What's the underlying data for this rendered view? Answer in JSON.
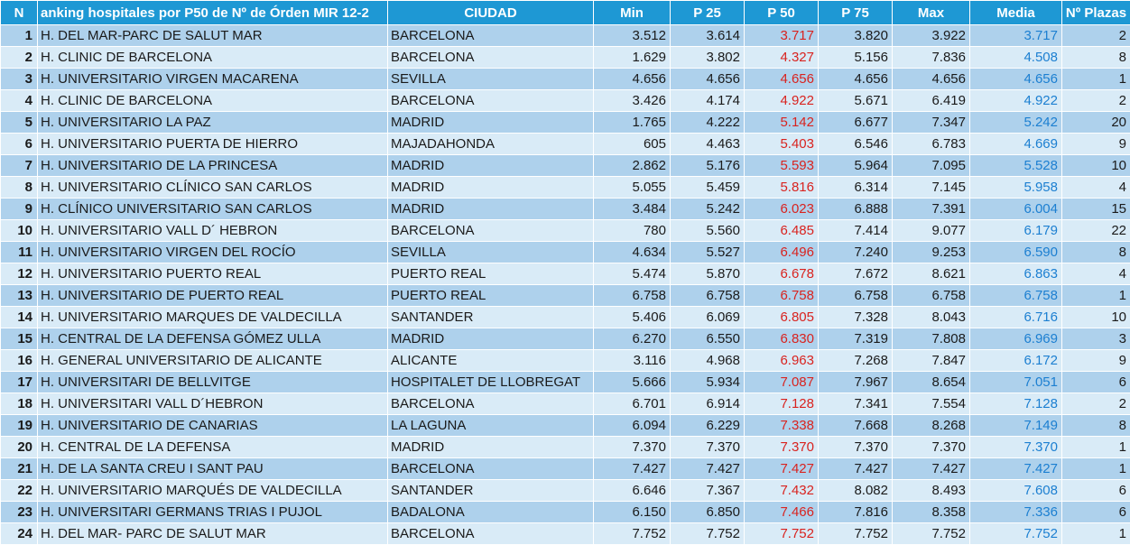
{
  "header": {
    "n": "N",
    "title": "anking hospitales por P50 de Nº de Órden MIR 12-2",
    "city": "CIUDAD",
    "min": "Min",
    "p25": "P 25",
    "p50": "P 50",
    "p75": "P 75",
    "max": "Max",
    "media": "Media",
    "plazas": "Nº Plazas"
  },
  "colors": {
    "header_bg": "#1e98d4",
    "row_dark": "#aed1ec",
    "row_light": "#d9ebf7",
    "p50_text": "#d9231f",
    "media_text": "#1c7fd1"
  },
  "rows": [
    {
      "n": "1",
      "name": "H. DEL MAR-PARC DE SALUT MAR",
      "city": "BARCELONA",
      "min": "3.512",
      "p25": "3.614",
      "p50": "3.717",
      "p75": "3.820",
      "max": "3.922",
      "media": "3.717",
      "plazas": "2"
    },
    {
      "n": "2",
      "name": "H. CLINIC DE BARCELONA",
      "city": "BARCELONA",
      "min": "1.629",
      "p25": "3.802",
      "p50": "4.327",
      "p75": "5.156",
      "max": "7.836",
      "media": "4.508",
      "plazas": "8"
    },
    {
      "n": "3",
      "name": "H. UNIVERSITARIO VIRGEN MACARENA",
      "city": "SEVILLA",
      "min": "4.656",
      "p25": "4.656",
      "p50": "4.656",
      "p75": "4.656",
      "max": "4.656",
      "media": "4.656",
      "plazas": "1"
    },
    {
      "n": "4",
      "name": "H. CLINIC  DE BARCELONA",
      "city": "BARCELONA",
      "min": "3.426",
      "p25": "4.174",
      "p50": "4.922",
      "p75": "5.671",
      "max": "6.419",
      "media": "4.922",
      "plazas": "2"
    },
    {
      "n": "5",
      "name": "H. UNIVERSITARIO LA PAZ",
      "city": "MADRID",
      "min": "1.765",
      "p25": "4.222",
      "p50": "5.142",
      "p75": "6.677",
      "max": "7.347",
      "media": "5.242",
      "plazas": "20"
    },
    {
      "n": "6",
      "name": "H. UNIVERSITARIO PUERTA DE HIERRO",
      "city": "MAJADAHONDA",
      "min": "605",
      "p25": "4.463",
      "p50": "5.403",
      "p75": "6.546",
      "max": "6.783",
      "media": "4.669",
      "plazas": "9"
    },
    {
      "n": "7",
      "name": "H. UNIVERSITARIO DE LA PRINCESA",
      "city": "MADRID",
      "min": "2.862",
      "p25": "5.176",
      "p50": "5.593",
      "p75": "5.964",
      "max": "7.095",
      "media": "5.528",
      "plazas": "10"
    },
    {
      "n": "8",
      "name": "H. UNIVERSITARIO CLÍNICO SAN CARLOS",
      "city": "MADRID",
      "min": "5.055",
      "p25": "5.459",
      "p50": "5.816",
      "p75": "6.314",
      "max": "7.145",
      "media": "5.958",
      "plazas": "4"
    },
    {
      "n": "9",
      "name": "H. CLÍNICO UNIVERSITARIO SAN CARLOS",
      "city": "MADRID",
      "min": "3.484",
      "p25": "5.242",
      "p50": "6.023",
      "p75": "6.888",
      "max": "7.391",
      "media": "6.004",
      "plazas": "15"
    },
    {
      "n": "10",
      "name": "H. UNIVERSITARIO VALL D´ HEBRON",
      "city": "BARCELONA",
      "min": "780",
      "p25": "5.560",
      "p50": "6.485",
      "p75": "7.414",
      "max": "9.077",
      "media": "6.179",
      "plazas": "22"
    },
    {
      "n": "11",
      "name": "H. UNIVERSITARIO VIRGEN DEL ROCÍO",
      "city": "SEVILLA",
      "min": "4.634",
      "p25": "5.527",
      "p50": "6.496",
      "p75": "7.240",
      "max": "9.253",
      "media": "6.590",
      "plazas": "8"
    },
    {
      "n": "12",
      "name": "H. UNIVERSITARIO PUERTO REAL",
      "city": "PUERTO REAL",
      "min": "5.474",
      "p25": "5.870",
      "p50": "6.678",
      "p75": "7.672",
      "max": "8.621",
      "media": "6.863",
      "plazas": "4"
    },
    {
      "n": "13",
      "name": "H. UNIVERSITARIO DE PUERTO REAL",
      "city": "PUERTO REAL",
      "min": "6.758",
      "p25": "6.758",
      "p50": "6.758",
      "p75": "6.758",
      "max": "6.758",
      "media": "6.758",
      "plazas": "1"
    },
    {
      "n": "14",
      "name": "H. UNIVERSITARIO MARQUES DE VALDECILLA",
      "city": "SANTANDER",
      "min": "5.406",
      "p25": "6.069",
      "p50": "6.805",
      "p75": "7.328",
      "max": "8.043",
      "media": "6.716",
      "plazas": "10"
    },
    {
      "n": "15",
      "name": "H. CENTRAL DE LA DEFENSA GÓMEZ ULLA",
      "city": "MADRID",
      "min": "6.270",
      "p25": "6.550",
      "p50": "6.830",
      "p75": "7.319",
      "max": "7.808",
      "media": "6.969",
      "plazas": "3"
    },
    {
      "n": "16",
      "name": "H. GENERAL UNIVERSITARIO DE ALICANTE",
      "city": "ALICANTE",
      "min": "3.116",
      "p25": "4.968",
      "p50": "6.963",
      "p75": "7.268",
      "max": "7.847",
      "media": "6.172",
      "plazas": "9"
    },
    {
      "n": "17",
      "name": "H. UNIVERSITARI DE BELLVITGE",
      "city": "HOSPITALET DE LLOBREGAT",
      "min": "5.666",
      "p25": "5.934",
      "p50": "7.087",
      "p75": "7.967",
      "max": "8.654",
      "media": "7.051",
      "plazas": "6"
    },
    {
      "n": "18",
      "name": "H. UNIVERSITARI VALL D´HEBRON",
      "city": "BARCELONA",
      "min": "6.701",
      "p25": "6.914",
      "p50": "7.128",
      "p75": "7.341",
      "max": "7.554",
      "media": "7.128",
      "plazas": "2"
    },
    {
      "n": "19",
      "name": "H. UNIVERSITARIO DE CANARIAS",
      "city": "LA LAGUNA",
      "min": "6.094",
      "p25": "6.229",
      "p50": "7.338",
      "p75": "7.668",
      "max": "8.268",
      "media": "7.149",
      "plazas": "8"
    },
    {
      "n": "20",
      "name": "H. CENTRAL DE LA DEFENSA",
      "city": "MADRID",
      "min": "7.370",
      "p25": "7.370",
      "p50": "7.370",
      "p75": "7.370",
      "max": "7.370",
      "media": "7.370",
      "plazas": "1"
    },
    {
      "n": "21",
      "name": "H. DE LA SANTA CREU I SANT PAU",
      "city": "BARCELONA",
      "min": "7.427",
      "p25": "7.427",
      "p50": "7.427",
      "p75": "7.427",
      "max": "7.427",
      "media": "7.427",
      "plazas": "1"
    },
    {
      "n": "22",
      "name": "H. UNIVERSITARIO MARQUÉS DE VALDECILLA",
      "city": "SANTANDER",
      "min": "6.646",
      "p25": "7.367",
      "p50": "7.432",
      "p75": "8.082",
      "max": "8.493",
      "media": "7.608",
      "plazas": "6"
    },
    {
      "n": "23",
      "name": "H. UNIVERSITARI GERMANS TRIAS I PUJOL",
      "city": "BADALONA",
      "min": "6.150",
      "p25": "6.850",
      "p50": "7.466",
      "p75": "7.816",
      "max": "8.358",
      "media": "7.336",
      "plazas": "6"
    },
    {
      "n": "24",
      "name": "H. DEL MAR- PARC DE SALUT MAR",
      "city": "BARCELONA",
      "min": "7.752",
      "p25": "7.752",
      "p50": "7.752",
      "p75": "7.752",
      "max": "7.752",
      "media": "7.752",
      "plazas": "1"
    }
  ]
}
